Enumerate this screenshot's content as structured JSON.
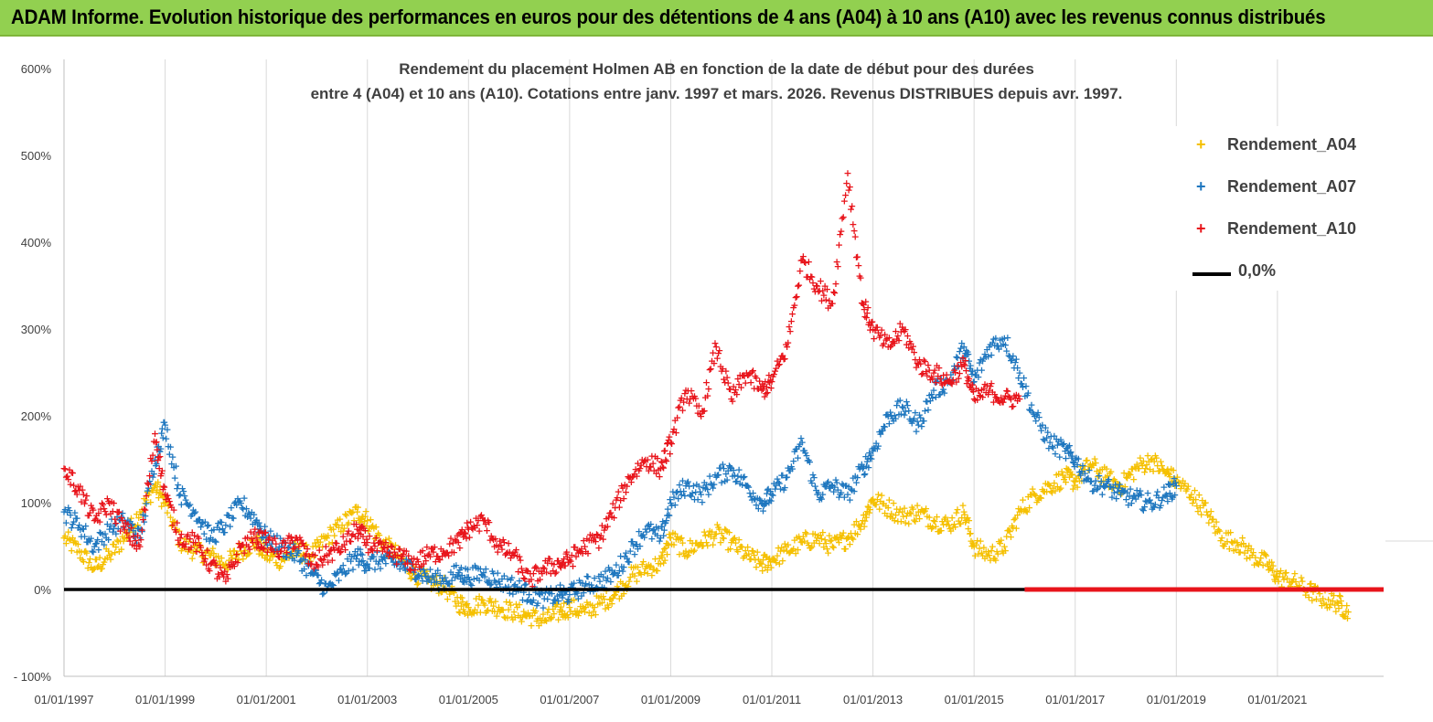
{
  "banner": {
    "title": "ADAM Informe. Evolution historique des performances en euros pour des détentions de 4 ans (A04) à 10 ans (A10) avec les revenus connus distribués"
  },
  "chart_data": {
    "type": "scatter",
    "title_lines": [
      "Rendement du placement Holmen AB en fonction de la date de début pour des durées",
      "entre 4 (A04) et 10 ans (A10). Cotations entre janv. 1997 et mars. 2026. Revenus DISTRIBUES depuis avr. 1997."
    ],
    "xlabel": "",
    "ylabel": "",
    "y_ticks": [
      "- 100%",
      "0%",
      "100%",
      "200%",
      "300%",
      "400%",
      "500%",
      "600%"
    ],
    "y_tick_values": [
      -100,
      0,
      100,
      200,
      300,
      400,
      500,
      600
    ],
    "ylim": [
      -100,
      600
    ],
    "x_ticks": [
      "01/01/1997",
      "01/01/1999",
      "01/01/2001",
      "01/01/2003",
      "01/01/2005",
      "01/01/2007",
      "01/01/2009",
      "01/01/2011",
      "01/01/2013",
      "01/01/2015",
      "01/01/2017",
      "01/01/2019",
      "01/01/2021"
    ],
    "x_tick_years": [
      1997,
      1999,
      2001,
      2003,
      2005,
      2007,
      2009,
      2011,
      2013,
      2015,
      2017,
      2019,
      2021
    ],
    "xlim": [
      1997.0,
      2023.1
    ],
    "grid": "vertical lines at x ticks",
    "legend_position": "right",
    "series": [
      {
        "name": "Rendement_A04",
        "color": "#f5c000",
        "points": [
          [
            1997.0,
            60
          ],
          [
            1997.3,
            45
          ],
          [
            1997.6,
            25
          ],
          [
            1997.9,
            40
          ],
          [
            1998.2,
            60
          ],
          [
            1998.5,
            90
          ],
          [
            1998.8,
            120
          ],
          [
            1999.0,
            100
          ],
          [
            1999.3,
            55
          ],
          [
            1999.6,
            45
          ],
          [
            1999.9,
            40
          ],
          [
            2000.2,
            30
          ],
          [
            2000.5,
            45
          ],
          [
            2000.8,
            55
          ],
          [
            2001.0,
            40
          ],
          [
            2001.3,
            35
          ],
          [
            2001.6,
            45
          ],
          [
            2001.9,
            40
          ],
          [
            2002.2,
            60
          ],
          [
            2002.5,
            75
          ],
          [
            2002.8,
            90
          ],
          [
            2003.0,
            80
          ],
          [
            2003.3,
            55
          ],
          [
            2003.6,
            40
          ],
          [
            2003.9,
            20
          ],
          [
            2004.2,
            10
          ],
          [
            2004.5,
            5
          ],
          [
            2004.8,
            -15
          ],
          [
            2005.0,
            -20
          ],
          [
            2005.3,
            -15
          ],
          [
            2005.6,
            -20
          ],
          [
            2005.9,
            -25
          ],
          [
            2006.2,
            -30
          ],
          [
            2006.5,
            -35
          ],
          [
            2006.8,
            -25
          ],
          [
            2007.0,
            -20
          ],
          [
            2007.3,
            -25
          ],
          [
            2007.6,
            -15
          ],
          [
            2007.9,
            -5
          ],
          [
            2008.2,
            15
          ],
          [
            2008.5,
            25
          ],
          [
            2008.8,
            30
          ],
          [
            2009.0,
            60
          ],
          [
            2009.3,
            45
          ],
          [
            2009.6,
            55
          ],
          [
            2009.9,
            65
          ],
          [
            2010.2,
            55
          ],
          [
            2010.5,
            40
          ],
          [
            2010.8,
            30
          ],
          [
            2011.0,
            35
          ],
          [
            2011.3,
            45
          ],
          [
            2011.6,
            55
          ],
          [
            2011.9,
            60
          ],
          [
            2012.2,
            50
          ],
          [
            2012.5,
            60
          ],
          [
            2012.8,
            80
          ],
          [
            2013.0,
            105
          ],
          [
            2013.3,
            95
          ],
          [
            2013.6,
            85
          ],
          [
            2013.9,
            90
          ],
          [
            2014.2,
            80
          ],
          [
            2014.5,
            75
          ],
          [
            2014.8,
            90
          ],
          [
            2015.0,
            50
          ],
          [
            2015.3,
            40
          ],
          [
            2015.6,
            50
          ],
          [
            2015.9,
            90
          ],
          [
            2016.2,
            110
          ],
          [
            2016.5,
            120
          ],
          [
            2016.8,
            130
          ],
          [
            2017.0,
            125
          ],
          [
            2017.3,
            145
          ],
          [
            2017.6,
            130
          ],
          [
            2017.9,
            120
          ],
          [
            2018.2,
            140
          ],
          [
            2018.5,
            150
          ],
          [
            2018.8,
            135
          ],
          [
            2019.0,
            125
          ],
          [
            2019.3,
            110
          ],
          [
            2019.6,
            90
          ],
          [
            2019.9,
            60
          ],
          [
            2020.2,
            55
          ],
          [
            2020.5,
            40
          ],
          [
            2020.8,
            30
          ],
          [
            2021.0,
            15
          ],
          [
            2021.3,
            10
          ],
          [
            2021.6,
            0
          ],
          [
            2021.9,
            -10
          ],
          [
            2022.2,
            -15
          ],
          [
            2022.4,
            -25
          ]
        ]
      },
      {
        "name": "Rendement_A07",
        "color": "#1f77bf",
        "points": [
          [
            1997.0,
            90
          ],
          [
            1997.3,
            75
          ],
          [
            1997.6,
            50
          ],
          [
            1997.9,
            70
          ],
          [
            1998.2,
            80
          ],
          [
            1998.5,
            60
          ],
          [
            1998.8,
            150
          ],
          [
            1999.0,
            190
          ],
          [
            1999.3,
            110
          ],
          [
            1999.6,
            90
          ],
          [
            1999.9,
            60
          ],
          [
            2000.2,
            75
          ],
          [
            2000.5,
            100
          ],
          [
            2000.8,
            80
          ],
          [
            2001.0,
            60
          ],
          [
            2001.3,
            50
          ],
          [
            2001.6,
            40
          ],
          [
            2001.9,
            20
          ],
          [
            2002.2,
            0
          ],
          [
            2002.5,
            20
          ],
          [
            2002.8,
            40
          ],
          [
            2003.0,
            30
          ],
          [
            2003.3,
            35
          ],
          [
            2003.6,
            30
          ],
          [
            2003.9,
            25
          ],
          [
            2004.2,
            15
          ],
          [
            2004.5,
            10
          ],
          [
            2004.8,
            20
          ],
          [
            2005.0,
            15
          ],
          [
            2005.3,
            20
          ],
          [
            2005.6,
            10
          ],
          [
            2005.9,
            5
          ],
          [
            2006.2,
            -5
          ],
          [
            2006.5,
            -10
          ],
          [
            2006.8,
            -5
          ],
          [
            2007.0,
            -5
          ],
          [
            2007.3,
            5
          ],
          [
            2007.6,
            10
          ],
          [
            2007.9,
            20
          ],
          [
            2008.2,
            45
          ],
          [
            2008.5,
            70
          ],
          [
            2008.8,
            60
          ],
          [
            2009.0,
            100
          ],
          [
            2009.3,
            120
          ],
          [
            2009.6,
            110
          ],
          [
            2009.9,
            130
          ],
          [
            2010.2,
            140
          ],
          [
            2010.5,
            120
          ],
          [
            2010.8,
            100
          ],
          [
            2011.0,
            110
          ],
          [
            2011.3,
            130
          ],
          [
            2011.6,
            170
          ],
          [
            2011.9,
            110
          ],
          [
            2012.2,
            120
          ],
          [
            2012.5,
            110
          ],
          [
            2012.8,
            140
          ],
          [
            2013.0,
            160
          ],
          [
            2013.3,
            200
          ],
          [
            2013.6,
            210
          ],
          [
            2013.9,
            190
          ],
          [
            2014.2,
            230
          ],
          [
            2014.5,
            240
          ],
          [
            2014.8,
            280
          ],
          [
            2015.0,
            240
          ],
          [
            2015.3,
            280
          ],
          [
            2015.6,
            290
          ],
          [
            2015.9,
            250
          ],
          [
            2016.2,
            200
          ],
          [
            2016.5,
            170
          ],
          [
            2016.8,
            160
          ],
          [
            2017.0,
            150
          ],
          [
            2017.3,
            125
          ],
          [
            2017.6,
            120
          ],
          [
            2017.9,
            110
          ],
          [
            2018.2,
            105
          ],
          [
            2018.5,
            100
          ],
          [
            2018.8,
            110
          ],
          [
            2019.0,
            120
          ]
        ]
      },
      {
        "name": "Rendement_A10",
        "color": "#e8141b",
        "points": [
          [
            1997.0,
            140
          ],
          [
            1997.3,
            115
          ],
          [
            1997.6,
            80
          ],
          [
            1997.9,
            100
          ],
          [
            1998.2,
            70
          ],
          [
            1998.5,
            50
          ],
          [
            1998.8,
            180
          ],
          [
            1999.0,
            110
          ],
          [
            1999.3,
            60
          ],
          [
            1999.6,
            55
          ],
          [
            1999.9,
            30
          ],
          [
            2000.2,
            10
          ],
          [
            2000.5,
            50
          ],
          [
            2000.8,
            60
          ],
          [
            2001.0,
            55
          ],
          [
            2001.3,
            45
          ],
          [
            2001.6,
            60
          ],
          [
            2001.9,
            30
          ],
          [
            2002.2,
            40
          ],
          [
            2002.5,
            50
          ],
          [
            2002.8,
            70
          ],
          [
            2003.0,
            55
          ],
          [
            2003.3,
            45
          ],
          [
            2003.6,
            40
          ],
          [
            2003.9,
            30
          ],
          [
            2004.2,
            40
          ],
          [
            2004.5,
            45
          ],
          [
            2004.8,
            55
          ],
          [
            2005.0,
            70
          ],
          [
            2005.3,
            80
          ],
          [
            2005.6,
            50
          ],
          [
            2005.9,
            40
          ],
          [
            2006.2,
            10
          ],
          [
            2006.5,
            25
          ],
          [
            2006.8,
            30
          ],
          [
            2007.0,
            35
          ],
          [
            2007.3,
            50
          ],
          [
            2007.6,
            60
          ],
          [
            2007.9,
            95
          ],
          [
            2008.2,
            130
          ],
          [
            2008.5,
            150
          ],
          [
            2008.8,
            140
          ],
          [
            2009.0,
            170
          ],
          [
            2009.3,
            230
          ],
          [
            2009.6,
            200
          ],
          [
            2009.9,
            280
          ],
          [
            2010.2,
            220
          ],
          [
            2010.5,
            250
          ],
          [
            2010.8,
            230
          ],
          [
            2011.0,
            240
          ],
          [
            2011.3,
            280
          ],
          [
            2011.6,
            380
          ],
          [
            2011.9,
            350
          ],
          [
            2012.2,
            330
          ],
          [
            2012.5,
            480
          ],
          [
            2012.8,
            330
          ],
          [
            2013.0,
            300
          ],
          [
            2013.3,
            280
          ],
          [
            2013.6,
            300
          ],
          [
            2013.9,
            260
          ],
          [
            2014.2,
            250
          ],
          [
            2014.5,
            240
          ],
          [
            2014.8,
            260
          ],
          [
            2015.0,
            220
          ],
          [
            2015.3,
            230
          ],
          [
            2015.6,
            220
          ],
          [
            2015.9,
            220
          ]
        ]
      },
      {
        "name": "0,0%",
        "color": "#000000",
        "line": [
          [
            1997.0,
            0
          ],
          [
            2016.0,
            0
          ]
        ]
      }
    ],
    "zero_markers": {
      "color": "#e8141b",
      "from": 2016.0,
      "to": 2023.1,
      "value": 0
    }
  }
}
